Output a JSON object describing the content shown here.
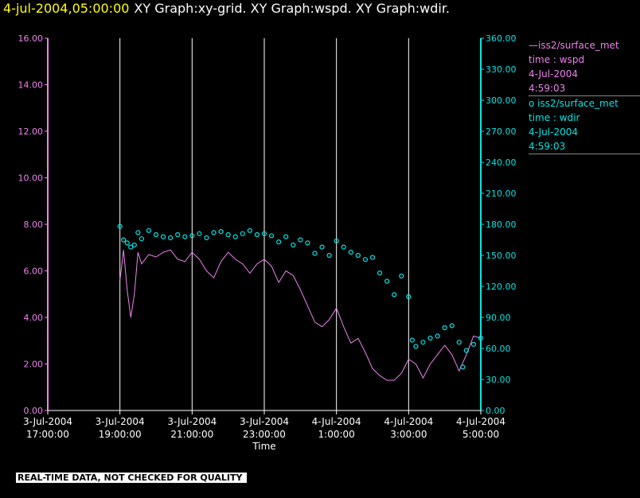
{
  "header": {
    "timestamp": "4-jul-2004,05:00:00",
    "graph_titles": "XY Graph:xy-grid.  XY Graph:wspd.  XY Graph:wdir."
  },
  "legend": {
    "wspd": {
      "source": "—iss2/surface_met",
      "line2": "time : wspd",
      "date": "4-Jul-2004",
      "time": "4:59:03"
    },
    "wdir": {
      "source": "o  iss2/surface_met",
      "line2": "time : wdir",
      "date": "4-Jul-2004",
      "time": "4:59:03"
    }
  },
  "disclaimer": "REAL-TIME DATA, NOT CHECKED FOR QUALITY",
  "colors": {
    "wspd": "#ee82ee",
    "wdir": "#00e5e5",
    "grid": "#ffffff",
    "title_time": "#ffff00"
  },
  "chart_data": {
    "type": "line",
    "xlabel": "Time",
    "x_ticks": [
      {
        "hour": 17,
        "date": "3-Jul-2004",
        "time": "17:00:00"
      },
      {
        "hour": 19,
        "date": "3-Jul-2004",
        "time": "19:00:00"
      },
      {
        "hour": 21,
        "date": "3-Jul-2004",
        "time": "21:00:00"
      },
      {
        "hour": 23,
        "date": "3-Jul-2004",
        "time": "23:00:00"
      },
      {
        "hour": 25,
        "date": "4-Jul-2004",
        "time": "1:00:00"
      },
      {
        "hour": 27,
        "date": "4-Jul-2004",
        "time": "3:00:00"
      },
      {
        "hour": 29,
        "date": "4-Jul-2004",
        "time": "5:00:00"
      }
    ],
    "xlim": [
      17,
      29
    ],
    "y_left": {
      "ticks": [
        "0.00",
        "2.00",
        "4.00",
        "6.00",
        "8.00",
        "10.00",
        "12.00",
        "14.00",
        "16.00"
      ],
      "ylim": [
        0,
        16
      ]
    },
    "y_right": {
      "ticks": [
        "0.00",
        "30.00",
        "60.00",
        "90.00",
        "120.00",
        "150.00",
        "180.00",
        "210.00",
        "240.00",
        "270.00",
        "300.00",
        "330.00",
        "360.00"
      ],
      "ylim": [
        0,
        360
      ]
    },
    "grid": "vertical",
    "series": [
      {
        "name": "iss2/surface_met wspd",
        "axis": "left",
        "style": "line",
        "x": [
          19.0,
          19.1,
          19.2,
          19.3,
          19.4,
          19.5,
          19.6,
          19.8,
          20.0,
          20.2,
          20.4,
          20.6,
          20.8,
          21.0,
          21.2,
          21.4,
          21.6,
          21.8,
          22.0,
          22.2,
          22.4,
          22.6,
          22.8,
          23.0,
          23.2,
          23.4,
          23.6,
          23.8,
          24.0,
          24.2,
          24.4,
          24.6,
          24.8,
          25.0,
          25.2,
          25.4,
          25.6,
          25.8,
          26.0,
          26.2,
          26.4,
          26.6,
          26.8,
          27.0,
          27.2,
          27.4,
          27.6,
          27.8,
          28.0,
          28.2,
          28.4,
          28.6,
          28.8,
          29.0
        ],
        "y": [
          5.6,
          6.9,
          5.2,
          4.0,
          5.0,
          6.8,
          6.3,
          6.7,
          6.6,
          6.8,
          6.9,
          6.5,
          6.4,
          6.8,
          6.5,
          6.0,
          5.7,
          6.4,
          6.8,
          6.5,
          6.3,
          5.9,
          6.3,
          6.5,
          6.2,
          5.5,
          6.0,
          5.8,
          5.2,
          4.5,
          3.8,
          3.6,
          3.9,
          4.4,
          3.6,
          2.9,
          3.1,
          2.5,
          1.8,
          1.5,
          1.3,
          1.3,
          1.6,
          2.2,
          2.0,
          1.4,
          2.0,
          2.4,
          2.8,
          2.4,
          1.7,
          2.4,
          3.2,
          3.1
        ]
      },
      {
        "name": "iss2/surface_met wdir",
        "axis": "right",
        "style": "markers",
        "x": [
          19.0,
          19.1,
          19.2,
          19.3,
          19.4,
          19.5,
          19.6,
          19.8,
          20.0,
          20.2,
          20.4,
          20.6,
          20.8,
          21.0,
          21.2,
          21.4,
          21.6,
          21.8,
          22.0,
          22.2,
          22.4,
          22.6,
          22.8,
          23.0,
          23.2,
          23.4,
          23.6,
          23.8,
          24.0,
          24.2,
          24.4,
          24.6,
          24.8,
          25.0,
          25.2,
          25.4,
          25.6,
          25.8,
          26.0,
          26.2,
          26.4,
          26.6,
          26.8,
          27.0,
          27.1,
          27.2,
          27.4,
          27.6,
          27.8,
          28.0,
          28.2,
          28.4,
          28.5,
          28.6,
          28.8,
          29.0
        ],
        "y": [
          178,
          165,
          162,
          158,
          160,
          172,
          166,
          174,
          170,
          168,
          167,
          170,
          168,
          169,
          171,
          167,
          172,
          173,
          170,
          168,
          171,
          174,
          170,
          171,
          169,
          163,
          168,
          160,
          165,
          162,
          152,
          158,
          150,
          164,
          158,
          153,
          150,
          146,
          148,
          133,
          125,
          112,
          130,
          110,
          68,
          62,
          66,
          70,
          72,
          80,
          82,
          66,
          42,
          58,
          64,
          70
        ]
      }
    ]
  }
}
